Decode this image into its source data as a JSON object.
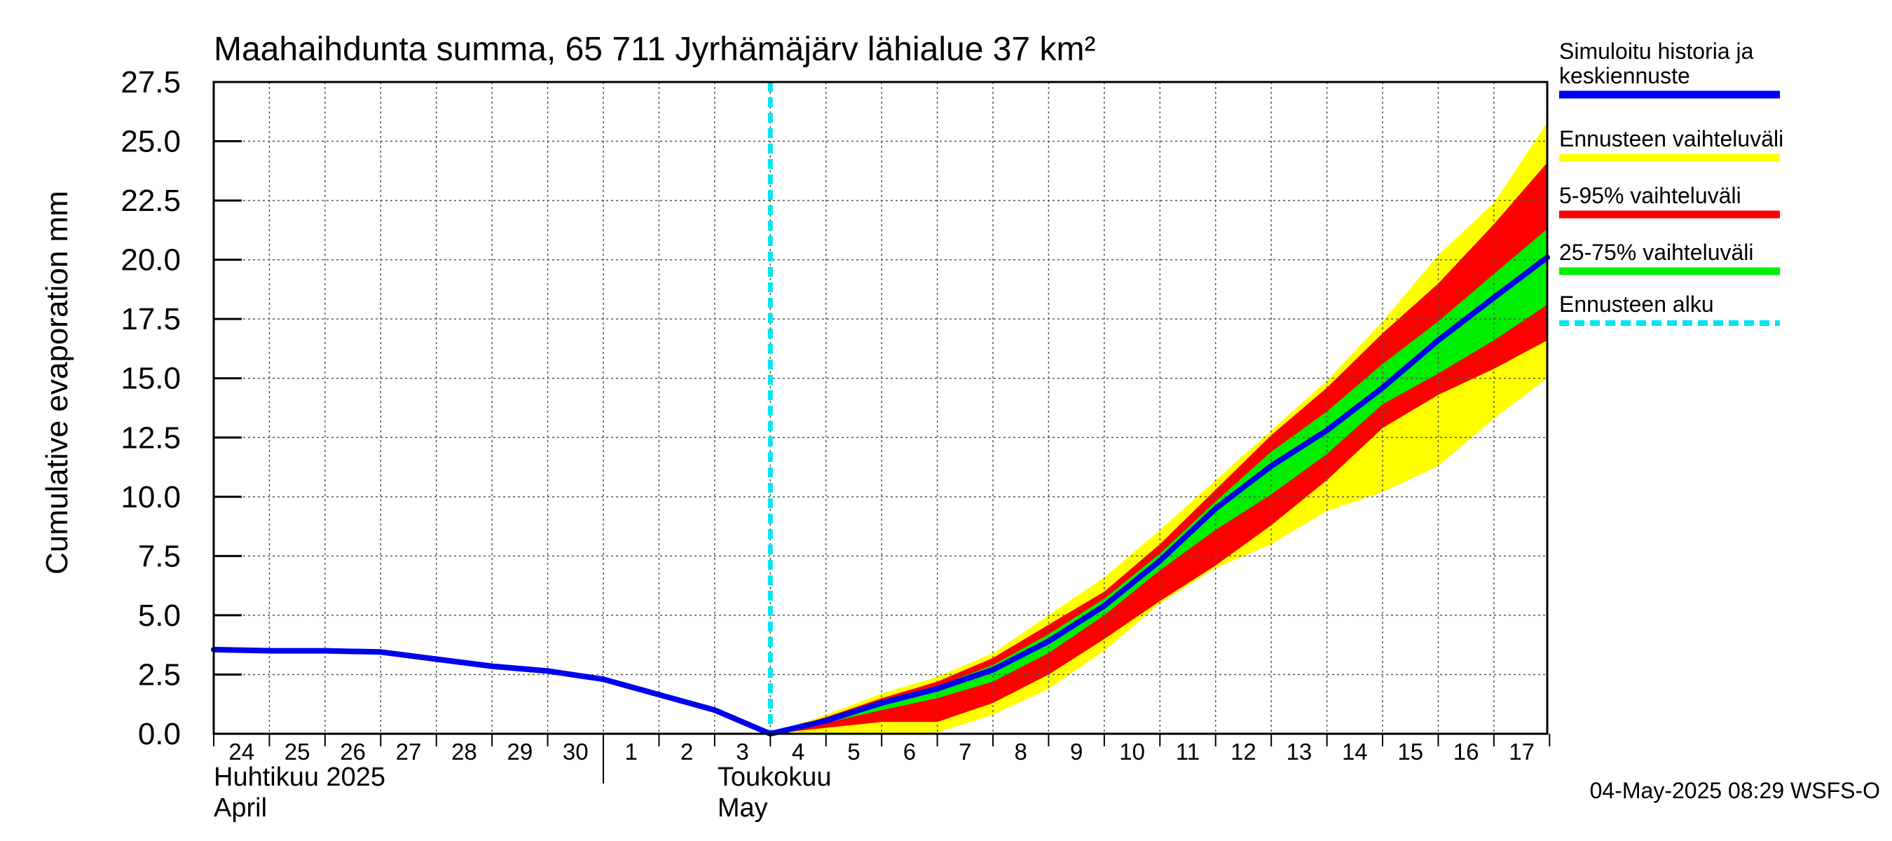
{
  "chart_data": {
    "type": "area",
    "title": "Maahaihdunta summa, 65 711 Jyrhämäjärv lähialue 37 km²",
    "ylabel": "Cumulative evaporation   mm",
    "ylim": [
      0,
      27.5
    ],
    "yticks": [
      "0.0",
      "2.5",
      "5.0",
      "7.5",
      "10.0",
      "12.5",
      "15.0",
      "17.5",
      "20.0",
      "22.5",
      "25.0",
      "27.5"
    ],
    "xlim": [
      "2025-04-24",
      "2025-05-17T23:00"
    ],
    "x_day_labels": [
      "24",
      "25",
      "26",
      "27",
      "28",
      "29",
      "30",
      "1",
      "2",
      "3",
      "4",
      "5",
      "6",
      "7",
      "8",
      "9",
      "10",
      "11",
      "12",
      "13",
      "14",
      "15",
      "16",
      "17"
    ],
    "month_labels": [
      {
        "fi": "Huhtikuu  2025",
        "en": "April",
        "date": "2025-04-24"
      },
      {
        "fi": "Toukokuu",
        "en": "May",
        "date": "2025-05-03"
      }
    ],
    "grid": true,
    "legend_position": "right",
    "forecast_start": "2025-05-04",
    "colors": {
      "median": "#0000ee",
      "range_full": "#ffff00",
      "range_5_95": "#ff0000",
      "range_25_75": "#00ee00",
      "forecast_start": "#00e5ee",
      "grid": "#555555"
    },
    "series": [
      {
        "name": "Simuloitu historia ja keskiennuste",
        "role": "median",
        "points": [
          [
            "2025-04-24",
            3.55
          ],
          [
            "2025-04-25",
            3.5
          ],
          [
            "2025-04-26",
            3.5
          ],
          [
            "2025-04-27",
            3.45
          ],
          [
            "2025-04-28",
            3.15
          ],
          [
            "2025-04-29",
            2.85
          ],
          [
            "2025-04-30",
            2.65
          ],
          [
            "2025-05-01",
            2.3
          ],
          [
            "2025-05-02",
            1.65
          ],
          [
            "2025-05-03",
            1.0
          ],
          [
            "2025-05-04",
            0.0
          ],
          [
            "2025-05-05",
            0.55
          ],
          [
            "2025-05-06",
            1.3
          ],
          [
            "2025-05-07",
            1.9
          ],
          [
            "2025-05-08",
            2.7
          ],
          [
            "2025-05-09",
            3.9
          ],
          [
            "2025-05-10",
            5.4
          ],
          [
            "2025-05-11",
            7.3
          ],
          [
            "2025-05-12",
            9.5
          ],
          [
            "2025-05-13",
            11.3
          ],
          [
            "2025-05-14",
            12.8
          ],
          [
            "2025-05-15",
            14.6
          ],
          [
            "2025-05-16",
            16.6
          ],
          [
            "2025-05-17",
            18.4
          ],
          [
            "2025-05-17T23:00",
            20.1
          ]
        ]
      },
      {
        "name": "Ennusteen vaihteluväli",
        "role": "range_full",
        "x": [
          "2025-05-04",
          "2025-05-05",
          "2025-05-06",
          "2025-05-07",
          "2025-05-08",
          "2025-05-09",
          "2025-05-10",
          "2025-05-11",
          "2025-05-12",
          "2025-05-13",
          "2025-05-14",
          "2025-05-15",
          "2025-05-16",
          "2025-05-17",
          "2025-05-17T23:00"
        ],
        "upper": [
          0.0,
          0.8,
          1.7,
          2.4,
          3.4,
          5.0,
          6.6,
          8.6,
          10.7,
          12.8,
          14.9,
          17.4,
          20.2,
          22.4,
          25.8
        ],
        "lower": [
          0.0,
          0.0,
          0.0,
          0.05,
          0.8,
          1.9,
          3.5,
          5.5,
          7.0,
          8.0,
          9.4,
          10.2,
          11.3,
          13.3,
          15.0
        ]
      },
      {
        "name": "5-95% vaihteluväli",
        "role": "range_5_95",
        "x": [
          "2025-05-04",
          "2025-05-05",
          "2025-05-06",
          "2025-05-07",
          "2025-05-08",
          "2025-05-09",
          "2025-05-10",
          "2025-05-11",
          "2025-05-12",
          "2025-05-13",
          "2025-05-14",
          "2025-05-15",
          "2025-05-16",
          "2025-05-17",
          "2025-05-17T23:00"
        ],
        "upper": [
          0.0,
          0.7,
          1.5,
          2.2,
          3.2,
          4.6,
          6.0,
          8.0,
          10.3,
          12.6,
          14.6,
          16.9,
          19.0,
          21.5,
          24.1
        ],
        "lower": [
          0.0,
          0.25,
          0.5,
          0.5,
          1.3,
          2.5,
          4.0,
          5.6,
          7.1,
          8.8,
          10.7,
          12.9,
          14.3,
          15.4,
          16.6
        ]
      },
      {
        "name": "25-75% vaihteluväli",
        "role": "range_25_75",
        "x": [
          "2025-05-04",
          "2025-05-05",
          "2025-05-06",
          "2025-05-07",
          "2025-05-08",
          "2025-05-09",
          "2025-05-10",
          "2025-05-11",
          "2025-05-12",
          "2025-05-13",
          "2025-05-14",
          "2025-05-15",
          "2025-05-16",
          "2025-05-17",
          "2025-05-17T23:00"
        ],
        "upper": [
          0.0,
          0.6,
          1.4,
          2.0,
          2.9,
          4.2,
          5.7,
          7.6,
          9.8,
          11.9,
          13.6,
          15.6,
          17.4,
          19.4,
          21.3
        ],
        "lower": [
          0.0,
          0.45,
          1.0,
          1.5,
          2.2,
          3.4,
          5.0,
          6.9,
          8.6,
          10.1,
          11.8,
          13.9,
          15.2,
          16.6,
          18.1
        ]
      },
      {
        "name": "Ennusteen alku",
        "role": "forecast_start"
      }
    ],
    "footer": "04-May-2025 08:29 WSFS-O"
  }
}
